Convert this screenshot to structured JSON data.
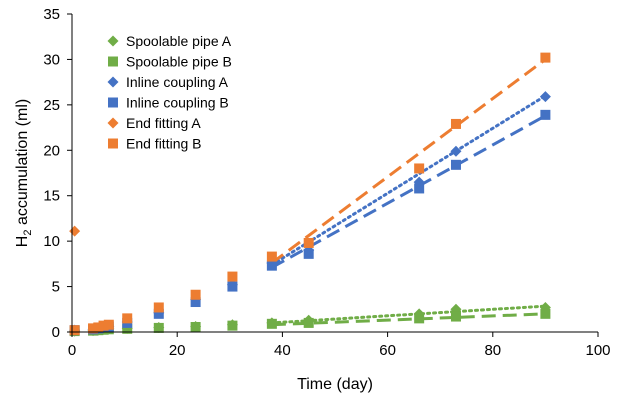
{
  "chart_data": {
    "type": "scatter",
    "xlabel": "Time (day)",
    "ylabel": {
      "main": "H",
      "sub": "2",
      "rest": " accumulation (ml)"
    },
    "xlim": [
      0,
      100
    ],
    "ylim": [
      0,
      35
    ],
    "x_ticks": [
      0,
      20,
      40,
      60,
      80,
      100
    ],
    "y_ticks": [
      0,
      5,
      10,
      15,
      20,
      25,
      30,
      35
    ],
    "grid": false,
    "legend_position": "top-left",
    "series": [
      {
        "name": "Spoolable pipe A",
        "marker": "diamond",
        "color": "#70AD47",
        "points": [
          [
            0.5,
            0.1
          ],
          [
            4,
            0.15
          ],
          [
            5,
            0.2
          ],
          [
            6,
            0.3
          ],
          [
            7,
            0.35
          ],
          [
            10.5,
            0.4
          ],
          [
            16.5,
            0.5
          ],
          [
            23.5,
            0.6
          ],
          [
            30.5,
            0.8
          ],
          [
            38,
            1.0
          ],
          [
            45,
            1.3
          ],
          [
            66,
            2.0
          ],
          [
            73,
            2.5
          ],
          [
            90,
            2.7
          ]
        ],
        "trend": {
          "style": "dotted",
          "x": [
            38,
            90
          ],
          "y": [
            1.0,
            2.85
          ]
        }
      },
      {
        "name": "Spoolable pipe B",
        "marker": "square",
        "color": "#70AD47",
        "points": [
          [
            0.5,
            0.1
          ],
          [
            4,
            0.15
          ],
          [
            5,
            0.2
          ],
          [
            6,
            0.25
          ],
          [
            7,
            0.3
          ],
          [
            10.5,
            0.35
          ],
          [
            16.5,
            0.45
          ],
          [
            23.5,
            0.55
          ],
          [
            30.5,
            0.7
          ],
          [
            38,
            0.9
          ],
          [
            45,
            1.0
          ],
          [
            66,
            1.5
          ],
          [
            73,
            1.7
          ],
          [
            90,
            2.0
          ]
        ],
        "trend": {
          "style": "dashed",
          "x": [
            38,
            90
          ],
          "y": [
            0.8,
            2.0
          ]
        }
      },
      {
        "name": "Inline coupling A",
        "marker": "diamond",
        "color": "#4472C4",
        "points": [
          [
            0.5,
            0.2
          ],
          [
            4,
            0.3
          ],
          [
            5,
            0.4
          ],
          [
            6,
            0.5
          ],
          [
            7,
            0.6
          ],
          [
            10.5,
            1.1
          ],
          [
            16.5,
            2.1
          ],
          [
            23.5,
            3.6
          ],
          [
            30.5,
            5.2
          ],
          [
            38,
            7.6
          ],
          [
            45,
            9.0
          ],
          [
            66,
            16.5
          ],
          [
            73,
            19.9
          ],
          [
            90,
            25.9
          ]
        ],
        "trend": {
          "style": "dotted",
          "x": [
            38,
            90
          ],
          "y": [
            7.4,
            26.0
          ]
        }
      },
      {
        "name": "Inline coupling B",
        "marker": "square",
        "color": "#4472C4",
        "points": [
          [
            0.5,
            0.2
          ],
          [
            4,
            0.3
          ],
          [
            5,
            0.4
          ],
          [
            6,
            0.5
          ],
          [
            7,
            0.6
          ],
          [
            10.5,
            1.0
          ],
          [
            16.5,
            2.0
          ],
          [
            23.5,
            3.3
          ],
          [
            30.5,
            5.0
          ],
          [
            38,
            7.3
          ],
          [
            45,
            8.6
          ],
          [
            66,
            15.8
          ],
          [
            73,
            18.4
          ],
          [
            90,
            23.9
          ]
        ],
        "trend": {
          "style": "dashed",
          "x": [
            38,
            90
          ],
          "y": [
            7.1,
            23.8
          ]
        }
      },
      {
        "name": "End fitting A",
        "marker": "diamond",
        "color": "#ED7D31",
        "points": [
          [
            0.5,
            11.1
          ]
        ],
        "trend": null
      },
      {
        "name": "End fitting B",
        "marker": "square",
        "color": "#ED7D31",
        "points": [
          [
            0.5,
            0.2
          ],
          [
            4,
            0.4
          ],
          [
            5,
            0.5
          ],
          [
            6,
            0.7
          ],
          [
            7,
            0.8
          ],
          [
            10.5,
            1.5
          ],
          [
            16.5,
            2.7
          ],
          [
            23.5,
            4.1
          ],
          [
            30.5,
            6.1
          ],
          [
            38,
            8.3
          ],
          [
            45,
            9.8
          ],
          [
            66,
            18.0
          ],
          [
            73,
            22.9
          ],
          [
            90,
            30.2
          ]
        ],
        "trend": {
          "style": "dashed",
          "x": [
            38,
            90
          ],
          "y": [
            7.6,
            30.0
          ]
        }
      }
    ]
  }
}
